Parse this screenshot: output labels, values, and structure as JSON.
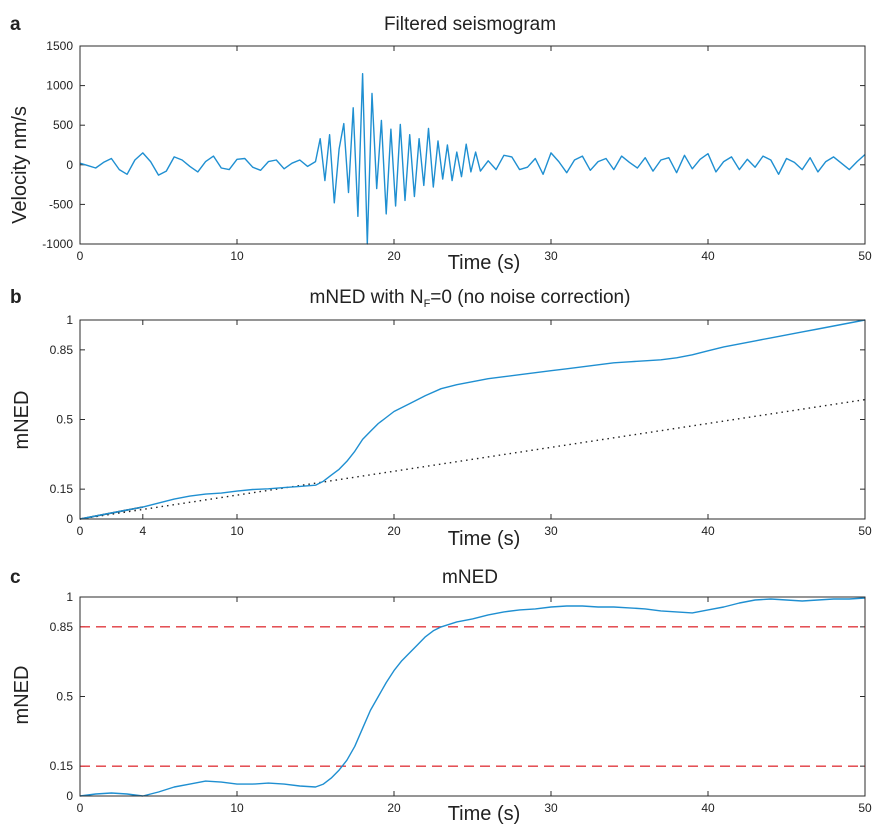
{
  "chart_data": [
    {
      "type": "line",
      "panel_letter": "a",
      "title": "Filtered seismogram",
      "xlabel": "Time (s)",
      "ylabel": "Velocity nm/s",
      "xlim": [
        0,
        50
      ],
      "ylim": [
        -1000,
        1500
      ],
      "xticks": [
        0,
        10,
        20,
        30,
        40,
        50
      ],
      "yticks": [
        -1000,
        -500,
        0,
        500,
        1000,
        1500
      ],
      "ytick_labels": [
        "-1000",
        "-500",
        "0",
        "500",
        "1000",
        "1500"
      ],
      "color": "#1f8fd1",
      "series": [
        {
          "x": [
            0,
            0.5,
            1,
            1.5,
            2,
            2.5,
            3,
            3.5,
            4,
            4.5,
            5,
            5.5,
            6,
            6.5,
            7,
            7.5,
            8,
            8.5,
            9,
            9.5,
            10,
            10.5,
            11,
            11.5,
            12,
            12.5,
            13,
            13.5,
            14,
            14.5,
            15,
            15.3,
            15.6,
            15.9,
            16.2,
            16.5,
            16.8,
            17.1,
            17.4,
            17.7,
            18,
            18.3,
            18.6,
            18.9,
            19.2,
            19.5,
            19.8,
            20.1,
            20.4,
            20.7,
            21,
            21.3,
            21.6,
            21.9,
            22.2,
            22.5,
            22.8,
            23.1,
            23.4,
            23.7,
            24,
            24.3,
            24.6,
            24.9,
            25.2,
            25.5,
            26,
            26.5,
            27,
            27.5,
            28,
            28.5,
            29,
            29.5,
            30,
            30.5,
            31,
            31.5,
            32,
            32.5,
            33,
            33.5,
            34,
            34.5,
            35,
            35.5,
            36,
            36.5,
            37,
            37.5,
            38,
            38.5,
            39,
            39.5,
            40,
            40.5,
            41,
            41.5,
            42,
            42.5,
            43,
            43.5,
            44,
            44.5,
            45,
            45.5,
            46,
            46.5,
            47,
            47.5,
            48,
            48.5,
            49,
            49.5,
            50
          ],
          "y": [
            20,
            -10,
            -40,
            30,
            80,
            -60,
            -120,
            60,
            150,
            40,
            -130,
            -80,
            100,
            60,
            -20,
            -90,
            40,
            110,
            -40,
            -60,
            70,
            80,
            -30,
            -70,
            40,
            60,
            -50,
            20,
            60,
            -20,
            40,
            330,
            -200,
            380,
            -480,
            200,
            520,
            -350,
            720,
            -650,
            1150,
            -1000,
            900,
            -300,
            560,
            -620,
            450,
            -520,
            510,
            -450,
            380,
            -400,
            330,
            -260,
            460,
            -280,
            300,
            -180,
            250,
            -200,
            160,
            -150,
            260,
            -90,
            160,
            -80,
            50,
            -60,
            120,
            100,
            -60,
            -30,
            80,
            -120,
            150,
            40,
            -100,
            60,
            110,
            -70,
            40,
            80,
            -60,
            110,
            30,
            -40,
            90,
            -80,
            60,
            90,
            -100,
            120,
            -50,
            70,
            140,
            -90,
            40,
            100,
            -60,
            70,
            -30,
            110,
            60,
            -120,
            80,
            30,
            -60,
            90,
            -90,
            40,
            100,
            20,
            -60,
            40,
            130
          ]
        }
      ]
    },
    {
      "type": "line",
      "panel_letter": "b",
      "title_prefix": "mNED with N",
      "title_sub": "F",
      "title_suffix": "=0 (no noise correction)",
      "xlabel": "Time (s)",
      "ylabel": "mNED",
      "xlim": [
        0,
        50
      ],
      "ylim": [
        0,
        1
      ],
      "xticks": [
        0,
        4,
        10,
        20,
        30,
        40,
        50
      ],
      "yticks": [
        0,
        0.15,
        0.5,
        0.85,
        1
      ],
      "ytick_labels": [
        "0",
        "0.15",
        "0.5",
        "0.85",
        "1"
      ],
      "color": "#1f8fd1",
      "series": [
        {
          "x": [
            0,
            1,
            2,
            3,
            4,
            5,
            6,
            7,
            8,
            9,
            10,
            11,
            12,
            13,
            14,
            15,
            15.5,
            16,
            16.5,
            17,
            17.5,
            18,
            18.5,
            19,
            19.5,
            20,
            21,
            22,
            23,
            24,
            25,
            26,
            27,
            28,
            29,
            30,
            31,
            32,
            33,
            34,
            35,
            36,
            37,
            38,
            39,
            40,
            41,
            42,
            43,
            44,
            45,
            46,
            47,
            48,
            49,
            50
          ],
          "y": [
            0,
            0.015,
            0.03,
            0.045,
            0.06,
            0.08,
            0.1,
            0.115,
            0.125,
            0.13,
            0.14,
            0.148,
            0.152,
            0.158,
            0.164,
            0.17,
            0.19,
            0.22,
            0.25,
            0.29,
            0.34,
            0.4,
            0.44,
            0.48,
            0.51,
            0.54,
            0.58,
            0.62,
            0.655,
            0.675,
            0.69,
            0.705,
            0.715,
            0.725,
            0.735,
            0.745,
            0.755,
            0.765,
            0.775,
            0.785,
            0.79,
            0.795,
            0.8,
            0.81,
            0.825,
            0.845,
            0.865,
            0.88,
            0.895,
            0.91,
            0.925,
            0.94,
            0.955,
            0.97,
            0.985,
            1.0
          ]
        }
      ],
      "reference_line": {
        "x": [
          0,
          50
        ],
        "y": [
          0,
          0.6
        ]
      },
      "initial_segment": {
        "x": [
          0,
          4
        ],
        "y": [
          0,
          0.06
        ]
      }
    },
    {
      "type": "line",
      "panel_letter": "c",
      "title": "mNED",
      "xlabel": "Time (s)",
      "ylabel": "mNED",
      "xlim": [
        0,
        50
      ],
      "ylim": [
        0,
        1
      ],
      "xticks": [
        0,
        10,
        20,
        30,
        40,
        50
      ],
      "yticks": [
        0,
        0.15,
        0.5,
        0.85,
        1
      ],
      "ytick_labels": [
        "0",
        "0.15",
        "0.5",
        "0.85",
        "1"
      ],
      "color": "#1f8fd1",
      "threshold_color": "#e0393f",
      "thresholds": [
        0.15,
        0.85
      ],
      "series": [
        {
          "x": [
            0,
            1,
            2,
            3,
            4,
            5,
            6,
            7,
            8,
            9,
            10,
            11,
            12,
            13,
            14,
            15,
            15.5,
            16,
            16.5,
            17,
            17.5,
            18,
            18.5,
            19,
            19.5,
            20,
            20.5,
            21,
            21.5,
            22,
            22.5,
            23,
            24,
            25,
            26,
            27,
            28,
            29,
            30,
            31,
            32,
            33,
            34,
            35,
            36,
            37,
            38,
            39,
            40,
            41,
            42,
            43,
            44,
            45,
            46,
            47,
            48,
            49,
            50
          ],
          "y": [
            0,
            0.01,
            0.015,
            0.01,
            0.0,
            0.02,
            0.045,
            0.06,
            0.075,
            0.07,
            0.06,
            0.06,
            0.065,
            0.06,
            0.05,
            0.045,
            0.06,
            0.09,
            0.13,
            0.18,
            0.25,
            0.34,
            0.43,
            0.5,
            0.57,
            0.63,
            0.68,
            0.72,
            0.76,
            0.8,
            0.83,
            0.85,
            0.875,
            0.89,
            0.91,
            0.925,
            0.935,
            0.94,
            0.95,
            0.955,
            0.955,
            0.95,
            0.95,
            0.945,
            0.94,
            0.93,
            0.925,
            0.92,
            0.935,
            0.95,
            0.97,
            0.985,
            0.99,
            0.985,
            0.98,
            0.985,
            0.99,
            0.99,
            0.995
          ]
        }
      ]
    }
  ]
}
